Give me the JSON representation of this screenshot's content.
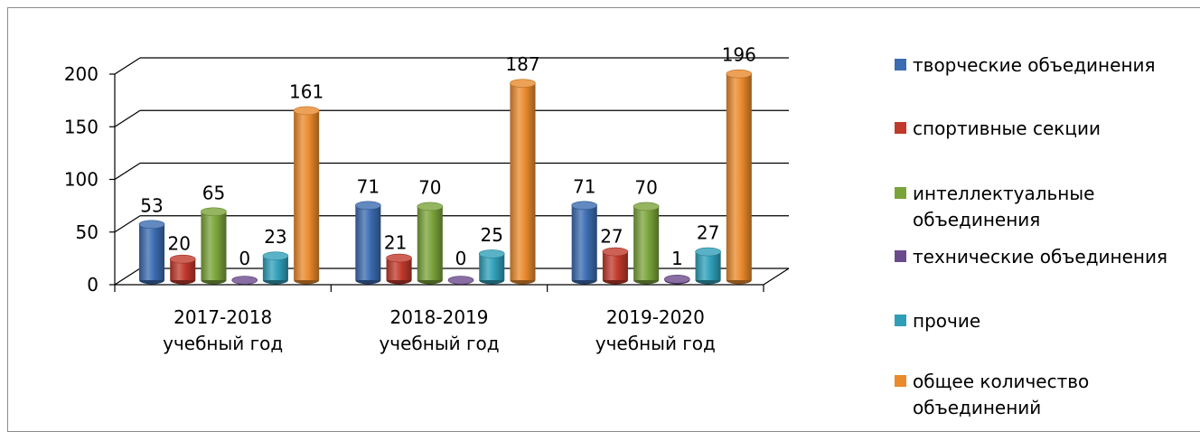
{
  "chart_data": {
    "type": "bar",
    "categories": [
      [
        "2017-2018",
        "учебный год"
      ],
      [
        "2018-2019",
        "учебный год"
      ],
      [
        "2019-2020",
        "учебный год"
      ]
    ],
    "series": [
      {
        "name": "творческие объединения",
        "color": "#3b6bb0",
        "values": [
          53,
          71,
          71
        ]
      },
      {
        "name": "спортивные секции",
        "color": "#c0392b",
        "values": [
          20,
          21,
          27
        ]
      },
      {
        "name": "интеллектуальные объединения",
        "color": "#7aa33a",
        "values": [
          65,
          70,
          70
        ]
      },
      {
        "name": "технические объединения",
        "color": "#6a4a8c",
        "values": [
          0,
          0,
          1
        ]
      },
      {
        "name": "прочие",
        "color": "#2f9fb8",
        "values": [
          23,
          25,
          27
        ]
      },
      {
        "name": "общее количество объединений",
        "color": "#e98a2c",
        "values": [
          161,
          187,
          196
        ]
      }
    ],
    "ylim": [
      0,
      200
    ],
    "yticks": [
      0,
      50,
      100,
      150,
      200
    ],
    "grid": true,
    "legend_position": "right",
    "three_d": true
  }
}
